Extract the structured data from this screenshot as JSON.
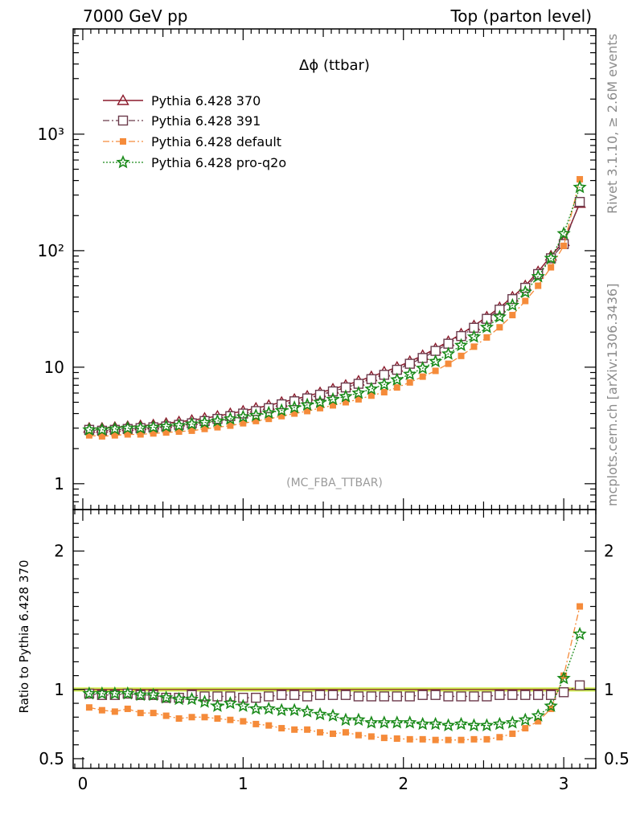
{
  "header": {
    "left": "7000 GeV pp",
    "right": "Top (parton level)"
  },
  "side_labels": {
    "rivet": "Rivet 3.1.10, ≥ 2.6M events",
    "mcplots": "mcplots.cern.ch [arXiv:1306.3436]"
  },
  "chart_data": [
    {
      "type": "line",
      "title": "Δϕ (ttbar)",
      "analysis_tag": "(MC_FBA_TTBAR)",
      "yscale": "log",
      "ylim": [
        0.6,
        8000
      ],
      "xlim": [
        -0.06,
        3.2
      ],
      "y_tick_labels": [
        "1",
        "10",
        "10²",
        "10³"
      ],
      "legend_position": "top-left",
      "series": [
        {
          "name": "Pythia 6.428 370",
          "color": "#8b1a2b",
          "marker": "triangle-open",
          "line": "solid",
          "x": [
            0.04,
            0.12,
            0.2,
            0.28,
            0.36,
            0.44,
            0.52,
            0.6,
            0.68,
            0.76,
            0.84,
            0.92,
            1.0,
            1.08,
            1.16,
            1.24,
            1.32,
            1.4,
            1.48,
            1.56,
            1.64,
            1.72,
            1.8,
            1.88,
            1.96,
            2.04,
            2.12,
            2.2,
            2.28,
            2.36,
            2.44,
            2.52,
            2.6,
            2.68,
            2.76,
            2.84,
            2.92,
            3.0,
            3.1
          ],
          "y": [
            3.0,
            3.0,
            3.05,
            3.1,
            3.15,
            3.2,
            3.3,
            3.4,
            3.5,
            3.65,
            3.8,
            4.0,
            4.2,
            4.45,
            4.7,
            5.0,
            5.3,
            5.65,
            6.05,
            6.5,
            7.0,
            7.6,
            8.3,
            9.1,
            10.0,
            11.2,
            12.6,
            14.4,
            16.6,
            19.3,
            22.7,
            27.0,
            32.5,
            40.0,
            50.0,
            66.0,
            90.0,
            120.0,
            255.0
          ]
        },
        {
          "name": "Pythia 6.428 391",
          "color": "#6b3a4b",
          "marker": "square-open",
          "line": "dashdot",
          "x": [
            0.04,
            0.12,
            0.2,
            0.28,
            0.36,
            0.44,
            0.52,
            0.6,
            0.68,
            0.76,
            0.84,
            0.92,
            1.0,
            1.08,
            1.16,
            1.24,
            1.32,
            1.4,
            1.48,
            1.56,
            1.64,
            1.72,
            1.8,
            1.88,
            1.96,
            2.04,
            2.12,
            2.2,
            2.28,
            2.36,
            2.44,
            2.52,
            2.6,
            2.68,
            2.76,
            2.84,
            2.92,
            3.0,
            3.1
          ],
          "y": [
            2.9,
            2.85,
            2.9,
            2.95,
            3.0,
            3.05,
            3.1,
            3.2,
            3.3,
            3.45,
            3.6,
            3.8,
            4.0,
            4.2,
            4.45,
            4.8,
            5.1,
            5.4,
            5.8,
            6.2,
            6.7,
            7.2,
            7.9,
            8.6,
            9.5,
            10.7,
            12.0,
            13.8,
            15.9,
            18.5,
            21.8,
            26.0,
            31.2,
            38.4,
            48.0,
            63.0,
            86.0,
            114.0,
            262.0
          ]
        },
        {
          "name": "Pythia 6.428 default",
          "color": "#f58b3a",
          "marker": "square-filled",
          "line": "dashdot",
          "x": [
            0.04,
            0.12,
            0.2,
            0.28,
            0.36,
            0.44,
            0.52,
            0.6,
            0.68,
            0.76,
            0.84,
            0.92,
            1.0,
            1.08,
            1.16,
            1.24,
            1.32,
            1.4,
            1.48,
            1.56,
            1.64,
            1.72,
            1.8,
            1.88,
            1.96,
            2.04,
            2.12,
            2.2,
            2.28,
            2.36,
            2.44,
            2.52,
            2.6,
            2.68,
            2.76,
            2.84,
            2.92,
            3.0,
            3.1
          ],
          "y": [
            2.6,
            2.55,
            2.6,
            2.65,
            2.65,
            2.7,
            2.75,
            2.8,
            2.85,
            2.95,
            3.05,
            3.15,
            3.3,
            3.45,
            3.6,
            3.8,
            4.0,
            4.2,
            4.45,
            4.7,
            5.0,
            5.3,
            5.7,
            6.1,
            6.7,
            7.4,
            8.3,
            9.3,
            10.7,
            12.5,
            15.0,
            18.0,
            22.0,
            28.0,
            37.0,
            50.0,
            72.0,
            110.0,
            410.0
          ]
        },
        {
          "name": "Pythia 6.428 pro-q2o",
          "color": "#1a8a1a",
          "marker": "star",
          "line": "dotted",
          "x": [
            0.04,
            0.12,
            0.2,
            0.28,
            0.36,
            0.44,
            0.52,
            0.6,
            0.68,
            0.76,
            0.84,
            0.92,
            1.0,
            1.08,
            1.16,
            1.24,
            1.32,
            1.4,
            1.48,
            1.56,
            1.64,
            1.72,
            1.8,
            1.88,
            1.96,
            2.04,
            2.12,
            2.2,
            2.28,
            2.36,
            2.44,
            2.52,
            2.6,
            2.68,
            2.76,
            2.84,
            2.92,
            3.0,
            3.1
          ],
          "y": [
            2.9,
            2.9,
            2.95,
            3.0,
            3.0,
            3.05,
            3.1,
            3.15,
            3.25,
            3.35,
            3.45,
            3.6,
            3.75,
            3.85,
            4.05,
            4.25,
            4.5,
            4.75,
            5.0,
            5.3,
            5.6,
            6.0,
            6.5,
            7.1,
            7.8,
            8.7,
            9.8,
            11.2,
            13.0,
            15.4,
            18.2,
            22.0,
            27.0,
            34.0,
            44.0,
            60.0,
            86.0,
            140.0,
            350.0
          ]
        }
      ]
    },
    {
      "type": "line",
      "ylabel": "Ratio to Pythia 6.428 370",
      "xlim": [
        -0.06,
        3.2
      ],
      "ylim": [
        0.43,
        2.3
      ],
      "x_tick_labels": [
        "0",
        "1",
        "2",
        "3"
      ],
      "y_tick_labels": [
        "0.5",
        "1",
        "2"
      ],
      "reference_band": {
        "color": "#ccee44",
        "low": 0.985,
        "high": 1.015
      },
      "series": [
        {
          "name": "Pythia 6.428 391",
          "color": "#6b3a4b",
          "marker": "square-open",
          "line": "dashdot",
          "x": [
            0.04,
            0.12,
            0.2,
            0.28,
            0.36,
            0.44,
            0.52,
            0.6,
            0.68,
            0.76,
            0.84,
            0.92,
            1.0,
            1.08,
            1.16,
            1.24,
            1.32,
            1.4,
            1.48,
            1.56,
            1.64,
            1.72,
            1.8,
            1.88,
            1.96,
            2.04,
            2.12,
            2.2,
            2.28,
            2.36,
            2.44,
            2.52,
            2.6,
            2.68,
            2.76,
            2.84,
            2.92,
            3.0,
            3.1
          ],
          "y": [
            0.97,
            0.96,
            0.96,
            0.97,
            0.96,
            0.96,
            0.94,
            0.94,
            0.96,
            0.95,
            0.95,
            0.95,
            0.94,
            0.94,
            0.95,
            0.96,
            0.96,
            0.95,
            0.96,
            0.96,
            0.96,
            0.95,
            0.95,
            0.95,
            0.95,
            0.95,
            0.96,
            0.96,
            0.95,
            0.95,
            0.95,
            0.95,
            0.96,
            0.96,
            0.96,
            0.96,
            0.96,
            0.98,
            1.03
          ]
        },
        {
          "name": "Pythia 6.428 default",
          "color": "#f58b3a",
          "marker": "square-filled",
          "line": "dashdot",
          "x": [
            0.04,
            0.12,
            0.2,
            0.28,
            0.36,
            0.44,
            0.52,
            0.6,
            0.68,
            0.76,
            0.84,
            0.92,
            1.0,
            1.08,
            1.16,
            1.24,
            1.32,
            1.4,
            1.48,
            1.56,
            1.64,
            1.72,
            1.8,
            1.88,
            1.96,
            2.04,
            2.12,
            2.2,
            2.28,
            2.36,
            2.44,
            2.52,
            2.6,
            2.68,
            2.76,
            2.84,
            2.92,
            3.0,
            3.1
          ],
          "y": [
            0.87,
            0.85,
            0.84,
            0.86,
            0.83,
            0.83,
            0.81,
            0.79,
            0.8,
            0.8,
            0.79,
            0.78,
            0.77,
            0.75,
            0.74,
            0.72,
            0.71,
            0.71,
            0.69,
            0.68,
            0.69,
            0.67,
            0.66,
            0.65,
            0.645,
            0.64,
            0.64,
            0.635,
            0.635,
            0.635,
            0.64,
            0.64,
            0.655,
            0.68,
            0.72,
            0.77,
            0.86,
            1.1,
            1.6
          ]
        },
        {
          "name": "Pythia 6.428 pro-q2o",
          "color": "#1a8a1a",
          "marker": "star",
          "line": "dotted",
          "x": [
            0.04,
            0.12,
            0.2,
            0.28,
            0.36,
            0.44,
            0.52,
            0.6,
            0.68,
            0.76,
            0.84,
            0.92,
            1.0,
            1.08,
            1.16,
            1.24,
            1.32,
            1.4,
            1.48,
            1.56,
            1.64,
            1.72,
            1.8,
            1.88,
            1.96,
            2.04,
            2.12,
            2.2,
            2.28,
            2.36,
            2.44,
            2.52,
            2.6,
            2.68,
            2.76,
            2.84,
            2.92,
            3.0,
            3.1
          ],
          "y": [
            0.97,
            0.97,
            0.97,
            0.97,
            0.96,
            0.96,
            0.94,
            0.93,
            0.93,
            0.91,
            0.88,
            0.9,
            0.88,
            0.86,
            0.86,
            0.85,
            0.85,
            0.84,
            0.82,
            0.81,
            0.78,
            0.78,
            0.76,
            0.76,
            0.76,
            0.76,
            0.75,
            0.75,
            0.74,
            0.75,
            0.74,
            0.74,
            0.75,
            0.76,
            0.78,
            0.81,
            0.88,
            1.08,
            1.4
          ]
        }
      ]
    }
  ]
}
